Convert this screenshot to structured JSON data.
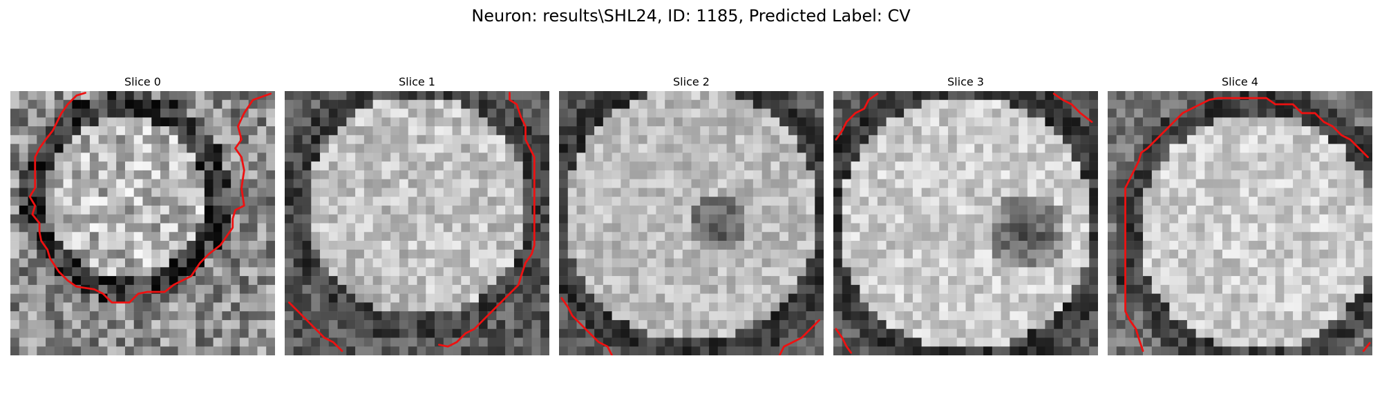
{
  "figure": {
    "title": "Neuron: results\\SHL24, ID: 1185, Predicted Label: CV"
  },
  "colors": {
    "contour": "#ee1111",
    "background": "#ffffff"
  },
  "panels": [
    {
      "title": "Slice 0",
      "contour_segments": [
        [
          [
            29.5,
            0.3
          ],
          [
            27.5,
            1.0
          ],
          [
            26.5,
            2.5
          ],
          [
            25.8,
            4.0
          ],
          [
            26.2,
            5.5
          ],
          [
            25.5,
            6.5
          ],
          [
            26.2,
            7.5
          ],
          [
            26.5,
            9.0
          ],
          [
            26.2,
            11.0
          ],
          [
            26.5,
            13.0
          ],
          [
            25.5,
            13.5
          ],
          [
            25.2,
            14.5
          ],
          [
            25.2,
            15.5
          ],
          [
            24.5,
            16.5
          ],
          [
            23.8,
            17.5
          ],
          [
            22.5,
            18.5
          ],
          [
            21.5,
            19.5
          ],
          [
            20.5,
            21.0
          ],
          [
            19.5,
            21.5
          ],
          [
            18.5,
            22.0
          ],
          [
            17.5,
            22.8
          ],
          [
            15.5,
            22.8
          ],
          [
            14.5,
            23.0
          ],
          [
            13.5,
            24.0
          ],
          [
            11.5,
            24.0
          ],
          [
            10.5,
            23.0
          ],
          [
            9.5,
            22.5
          ],
          [
            7.5,
            22.2
          ],
          [
            6.5,
            21.5
          ],
          [
            5.5,
            20.5
          ],
          [
            4.5,
            19.0
          ],
          [
            4.2,
            18.0
          ],
          [
            3.5,
            17.0
          ],
          [
            3.3,
            16.0
          ],
          [
            3.3,
            15.0
          ],
          [
            2.5,
            14.0
          ],
          [
            2.8,
            13.0
          ],
          [
            2.2,
            12.0
          ],
          [
            2.8,
            11.0
          ],
          [
            2.8,
            9.0
          ],
          [
            2.8,
            7.5
          ],
          [
            3.3,
            6.5
          ],
          [
            4.0,
            5.5
          ],
          [
            4.8,
            4.5
          ],
          [
            5.3,
            3.5
          ],
          [
            5.8,
            2.5
          ],
          [
            6.5,
            1.5
          ],
          [
            7.5,
            0.5
          ],
          [
            8.5,
            0.2
          ]
        ]
      ]
    },
    {
      "title": "Slice 1",
      "contour_segments": [
        [
          [
            25.5,
            0.2
          ],
          [
            25.5,
            1.0
          ],
          [
            26.3,
            1.5
          ],
          [
            26.8,
            3.0
          ],
          [
            27.3,
            4.0
          ],
          [
            27.3,
            5.5
          ],
          [
            27.8,
            6.5
          ],
          [
            28.3,
            7.5
          ],
          [
            28.3,
            9.0
          ],
          [
            28.3,
            12.0
          ],
          [
            28.3,
            15.0
          ],
          [
            28.3,
            17.5
          ],
          [
            28.0,
            18.5
          ],
          [
            27.3,
            19.5
          ],
          [
            26.8,
            21.0
          ],
          [
            26.5,
            22.0
          ],
          [
            25.5,
            23.0
          ],
          [
            24.5,
            24.0
          ],
          [
            23.5,
            25.0
          ],
          [
            22.5,
            26.0
          ],
          [
            21.5,
            27.0
          ],
          [
            20.5,
            27.5
          ],
          [
            19.5,
            28.5
          ],
          [
            18.5,
            29.0
          ],
          [
            17.5,
            28.8
          ]
        ],
        [
          [
            0.5,
            24.0
          ],
          [
            1.5,
            25.0
          ],
          [
            2.5,
            26.0
          ],
          [
            3.5,
            27.0
          ],
          [
            4.5,
            28.0
          ],
          [
            5.5,
            28.5
          ],
          [
            6.5,
            29.5
          ]
        ]
      ]
    },
    {
      "title": "Slice 2",
      "contour_segments": [
        [
          [
            0.3,
            23.5
          ],
          [
            1.0,
            24.5
          ],
          [
            1.5,
            25.5
          ],
          [
            2.5,
            26.5
          ],
          [
            3.5,
            27.5
          ],
          [
            4.5,
            28.5
          ],
          [
            5.5,
            29.0
          ],
          [
            6.0,
            30.0
          ]
        ],
        [
          [
            29.5,
            26.0
          ],
          [
            28.5,
            27.0
          ],
          [
            27.5,
            28.0
          ],
          [
            26.5,
            28.5
          ],
          [
            25.5,
            29.0
          ],
          [
            25.0,
            30.0
          ]
        ]
      ]
    },
    {
      "title": "Slice 3",
      "contour_segments": [
        [
          [
            0.3,
            5.5
          ],
          [
            1.0,
            4.5
          ],
          [
            1.5,
            3.5
          ],
          [
            2.5,
            2.5
          ],
          [
            3.5,
            2.0
          ],
          [
            4.0,
            1.0
          ],
          [
            5.0,
            0.3
          ]
        ],
        [
          [
            25.0,
            0.3
          ],
          [
            26.0,
            1.0
          ],
          [
            27.0,
            1.5
          ],
          [
            28.0,
            2.5
          ],
          [
            29.3,
            3.5
          ]
        ],
        [
          [
            0.3,
            27.0
          ],
          [
            1.0,
            28.0
          ],
          [
            1.5,
            29.0
          ],
          [
            2.0,
            29.7
          ]
        ]
      ]
    },
    {
      "title": "Slice 4",
      "contour_segments": [
        [
          [
            4.0,
            29.5
          ],
          [
            3.5,
            28.0
          ],
          [
            3.2,
            27.0
          ],
          [
            2.5,
            26.0
          ],
          [
            2.0,
            25.0
          ],
          [
            2.0,
            23.0
          ],
          [
            2.0,
            20.0
          ],
          [
            2.0,
            17.0
          ],
          [
            2.0,
            14.0
          ],
          [
            2.0,
            11.0
          ],
          [
            2.5,
            10.0
          ],
          [
            3.0,
            9.0
          ],
          [
            3.5,
            8.0
          ],
          [
            3.8,
            7.0
          ],
          [
            4.5,
            6.5
          ],
          [
            5.5,
            5.5
          ],
          [
            6.5,
            4.5
          ],
          [
            7.5,
            3.5
          ],
          [
            8.5,
            2.5
          ],
          [
            9.5,
            2.0
          ],
          [
            10.5,
            1.5
          ],
          [
            11.5,
            1.0
          ],
          [
            12.5,
            0.8
          ],
          [
            15.0,
            0.8
          ],
          [
            18.0,
            0.8
          ],
          [
            19.0,
            1.5
          ],
          [
            21.0,
            1.5
          ],
          [
            22.0,
            2.5
          ],
          [
            23.5,
            2.5
          ],
          [
            24.5,
            3.5
          ],
          [
            25.5,
            4.0
          ],
          [
            26.5,
            5.0
          ],
          [
            27.5,
            5.5
          ],
          [
            28.5,
            6.5
          ],
          [
            29.5,
            7.5
          ]
        ],
        [
          [
            29.7,
            28.6
          ],
          [
            29.0,
            29.5
          ]
        ]
      ]
    }
  ]
}
